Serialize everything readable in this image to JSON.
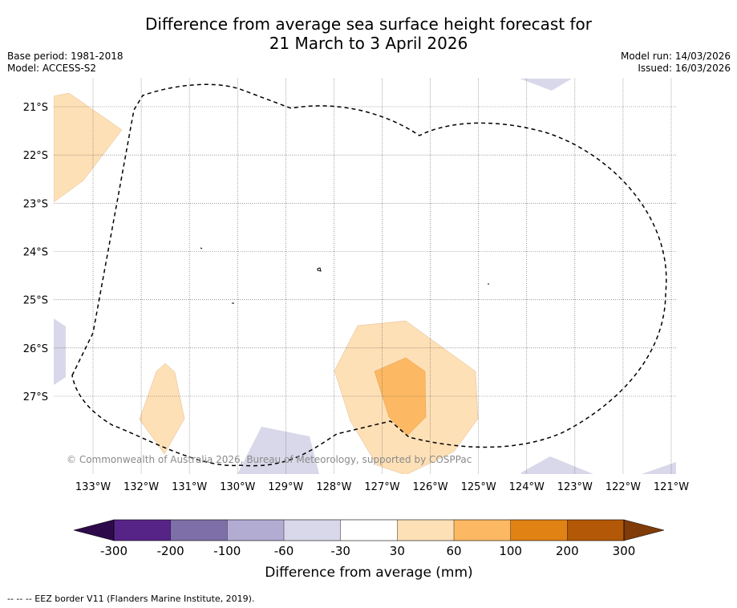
{
  "title_line1": "Difference from average sea surface height forecast for",
  "title_line2": "21 March to 3 April 2026",
  "base_period": "Base period: 1981-2018",
  "model": "Model: ACCESS-S2",
  "model_run": "Model run: 14/03/2026",
  "issued": "Issued: 16/03/2026",
  "lat_labels": [
    "21°S",
    "22°S",
    "23°S",
    "24°S",
    "25°S",
    "26°S",
    "27°S"
  ],
  "lon_labels": [
    "133°W",
    "132°W",
    "131°W",
    "130°W",
    "129°W",
    "128°W",
    "127°W",
    "126°W",
    "125°W",
    "124°W",
    "123°W",
    "122°W",
    "121°W"
  ],
  "copyright": "© Commonwealth of Australia 2026, Bureau of Meteorology, supported by COSPPac",
  "colorbar": {
    "tick_labels": [
      "-300",
      "-200",
      "-100",
      "-60",
      "-30",
      "30",
      "60",
      "100",
      "200",
      "300"
    ],
    "colors": [
      "#562487",
      "#7e6fa9",
      "#b2abd2",
      "#d8d8ea",
      "#ffffff",
      "#fee0b6",
      "#fdb863",
      "#e08214",
      "#b35806"
    ],
    "low_extend_color": "#2d0b4a",
    "high_extend_color": "#7f3b08",
    "title": "Difference from average (mm)"
  },
  "footnote": "--  --  -- EEZ border V11 (Flanders Marine Institute, 2019).",
  "chart_data": {
    "type": "heatmap",
    "title": "Difference from average sea surface height forecast for 21 March to 3 April 2026",
    "units": "mm",
    "lon_range": [
      -133.6,
      -120.9
    ],
    "lat_range": [
      -28.6,
      -20.6
    ],
    "contour_levels": [
      -300,
      -200,
      -100,
      -60,
      -30,
      30,
      60,
      100,
      200,
      300
    ],
    "regions": [
      {
        "category": "30 to 60",
        "area": "north-west corner near 133.5°W, 21-23°S"
      },
      {
        "category": "30 to 60",
        "area": "central south near 126.5°W, 25.5-28.5°S"
      },
      {
        "category": "60 to 100",
        "area": "core near 126.3°W, 26.8°S"
      },
      {
        "category": "30 to 60",
        "area": "near 131.5°W, 27-28°S"
      },
      {
        "category": "-60 to -30",
        "area": "western edge near 133.6°W, 26°S"
      },
      {
        "category": "-60 to -30",
        "area": "south near 129.3°W, 28.3°S"
      },
      {
        "category": "-60 to -30",
        "area": "top near 123.5°W, 20.6°S"
      },
      {
        "category": "-60 to -30",
        "area": "south-east near 123.5°W and 121.3°W, 28.5°S"
      }
    ],
    "eez_border": "dashed"
  }
}
